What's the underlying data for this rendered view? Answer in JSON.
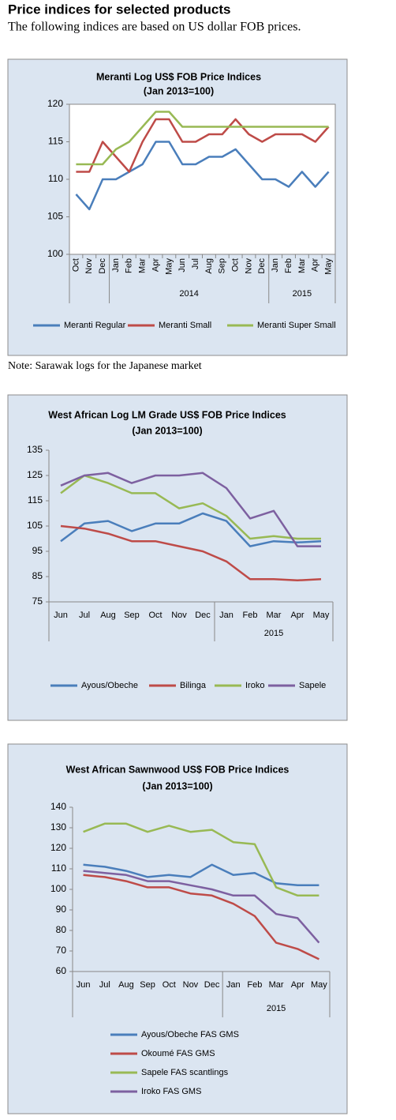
{
  "header": {
    "title": "Price indices for selected products",
    "subtitle": "The following indices are based on US dollar FOB prices."
  },
  "note": "Note: Sarawak logs for the Japanese market",
  "chart_data": [
    {
      "type": "line",
      "title": "Meranti Log US$ FOB Price Indices",
      "subtitle": "(Jan 2013=100)",
      "categories": [
        "Oct",
        "Nov",
        "Dec",
        "Jan",
        "Feb",
        "Mar",
        "Apr",
        "May",
        "Jun",
        "Jul",
        "Aug",
        "Sep",
        "Oct",
        "Nov",
        "Dec",
        "Jan",
        "Feb",
        "Mar",
        "Apr",
        "May"
      ],
      "groups": [
        null,
        null,
        null,
        "2014",
        null,
        null,
        null,
        null,
        null,
        null,
        null,
        null,
        null,
        null,
        null,
        "2015",
        null,
        null,
        null,
        null
      ],
      "ylim": [
        100,
        120
      ],
      "yticks": [
        100,
        105,
        110,
        115,
        120
      ],
      "grid": false,
      "series": [
        {
          "name": "Meranti Regular",
          "color": "#4a7ebb",
          "values": [
            108,
            106,
            110,
            110,
            111,
            112,
            115,
            115,
            112,
            112,
            113,
            113,
            114,
            112,
            110,
            110,
            109,
            111,
            109,
            111
          ]
        },
        {
          "name": "Meranti Small",
          "color": "#be4b48",
          "values": [
            111,
            111,
            115,
            113,
            111,
            115,
            118,
            118,
            115,
            115,
            116,
            116,
            118,
            116,
            115,
            116,
            116,
            116,
            115,
            117
          ]
        },
        {
          "name": "Meranti Super Small",
          "color": "#98b954",
          "values": [
            112,
            112,
            112,
            114,
            115,
            117,
            119,
            119,
            117,
            117,
            117,
            117,
            117,
            117,
            117,
            117,
            117,
            117,
            117,
            117
          ]
        }
      ]
    },
    {
      "type": "line",
      "title": "West African Log LM Grade US$ FOB Price Indices",
      "subtitle": "(Jan 2013=100)",
      "categories": [
        "Jun",
        "Jul",
        "Aug",
        "Sep",
        "Oct",
        "Nov",
        "Dec",
        "Jan",
        "Feb",
        "Mar",
        "Apr",
        "May"
      ],
      "groups": [
        null,
        null,
        null,
        null,
        null,
        null,
        null,
        "2015",
        null,
        null,
        null,
        null
      ],
      "ylim": [
        75,
        135
      ],
      "yticks": [
        75,
        85,
        95,
        105,
        115,
        125,
        135
      ],
      "grid": false,
      "series": [
        {
          "name": "Ayous/Obeche",
          "color": "#4a7ebb",
          "values": [
            99,
            106,
            107,
            103,
            106,
            106,
            110,
            107,
            97,
            99,
            98.5,
            99
          ]
        },
        {
          "name": "Bilinga",
          "color": "#be4b48",
          "values": [
            105,
            104,
            102,
            99,
            99,
            97,
            95,
            91,
            84,
            84,
            83.5,
            84
          ]
        },
        {
          "name": "Iroko",
          "color": "#98b954",
          "values": [
            118,
            125,
            122,
            118,
            118,
            112,
            114,
            109,
            100,
            101,
            100,
            100
          ]
        },
        {
          "name": "Sapele",
          "color": "#7d60a0",
          "values": [
            121,
            125,
            126,
            122,
            125,
            125,
            126,
            120,
            108,
            111,
            97,
            97
          ]
        }
      ]
    },
    {
      "type": "line",
      "title": "West African Sawnwood US$ FOB Price Indices",
      "subtitle": "(Jan 2013=100)",
      "categories": [
        "Jun",
        "Jul",
        "Aug",
        "Sep",
        "Oct",
        "Nov",
        "Dec",
        "Jan",
        "Feb",
        "Mar",
        "Apr",
        "May"
      ],
      "groups": [
        null,
        null,
        null,
        null,
        null,
        null,
        null,
        "2015",
        null,
        null,
        null,
        null
      ],
      "ylim": [
        60,
        140
      ],
      "yticks": [
        60,
        70,
        80,
        90,
        100,
        110,
        120,
        130,
        140
      ],
      "grid": false,
      "series": [
        {
          "name": "Ayous/Obeche  FAS GMS",
          "color": "#4a7ebb",
          "values": [
            112,
            111,
            109,
            106,
            107,
            106,
            112,
            107,
            108,
            103,
            102,
            102
          ]
        },
        {
          "name": "Okoumé  FAS GMS",
          "color": "#be4b48",
          "values": [
            107,
            106,
            104,
            101,
            101,
            98,
            97,
            93,
            87,
            74,
            71,
            66
          ]
        },
        {
          "name": "Sapele FAS scantlings",
          "color": "#98b954",
          "values": [
            128,
            132,
            132,
            128,
            131,
            128,
            129,
            123,
            122,
            101,
            97,
            97
          ]
        },
        {
          "name": "Iroko FAS GMS",
          "color": "#7d60a0",
          "values": [
            109,
            108,
            107,
            104,
            104,
            102,
            100,
            97,
            97,
            88,
            86,
            74
          ]
        }
      ]
    }
  ]
}
